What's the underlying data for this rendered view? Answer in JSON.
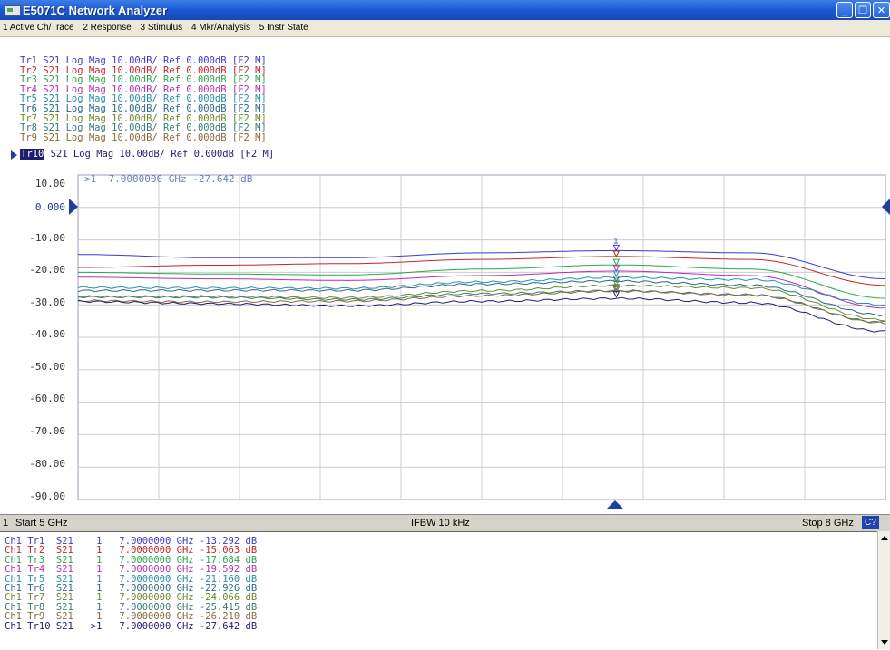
{
  "window": {
    "title": "E5071C Network Analyzer"
  },
  "menu": {
    "items": [
      "1 Active Ch/Trace",
      "2 Response",
      "3 Stimulus",
      "4 Mkr/Analysis",
      "5 Instr State"
    ]
  },
  "traces": [
    {
      "name": "Tr1",
      "text": " S21 Log Mag 10.00dB/ Ref 0.000dB [F2 M]",
      "color": "#3a3ad0"
    },
    {
      "name": "Tr2",
      "text": " S21 Log Mag 10.00dB/ Ref 0.000dB [F2 M]",
      "color": "#c0272d"
    },
    {
      "name": "Tr3",
      "text": " S21 Log Mag 10.00dB/ Ref 0.000dB [F2 M]",
      "color": "#2aa84a"
    },
    {
      "name": "Tr4",
      "text": " S21 Log Mag 10.00dB/ Ref 0.000dB [F2 M]",
      "color": "#b52fb5"
    },
    {
      "name": "Tr5",
      "text": " S21 Log Mag 10.00dB/ Ref 0.000dB [F2 M]",
      "color": "#2a8fa8"
    },
    {
      "name": "Tr6",
      "text": " S21 Log Mag 10.00dB/ Ref 0.000dB [F2 M]",
      "color": "#2a6a8a"
    },
    {
      "name": "Tr7",
      "text": " S21 Log Mag 10.00dB/ Ref 0.000dB [F2 M]",
      "color": "#6a8a2a"
    },
    {
      "name": "Tr8",
      "text": " S21 Log Mag 10.00dB/ Ref 0.000dB [F2 M]",
      "color": "#3a7a7a"
    },
    {
      "name": "Tr9",
      "text": " S21 Log Mag 10.00dB/ Ref 0.000dB [F2 M]",
      "color": "#8a6a3a"
    },
    {
      "name": "Tr10",
      "text": " S21 Log Mag 10.00dB/ Ref 0.000dB [F2 M]",
      "color": "#1e1e6e"
    }
  ],
  "chart": {
    "readout": ">1  7.0000000 GHz -27.642 dB",
    "y_ticks": [
      "10.00",
      "0.000",
      "-10.00",
      "-20.00",
      "-30.00",
      "-40.00",
      "-50.00",
      "-60.00",
      "-70.00",
      "-80.00",
      "-90.00"
    ],
    "marker_label": "1",
    "marker_ghz": 7.0,
    "start_ghz": 5,
    "stop_ghz": 8
  },
  "chart_data": {
    "type": "line",
    "ylim": [
      -90,
      10
    ],
    "xlim": [
      5,
      8
    ],
    "series": [
      {
        "name": "Tr1",
        "x": [
          5,
          5.5,
          6,
          6.5,
          7,
          7.5,
          8
        ],
        "y": [
          -14.5,
          -15.5,
          -15.5,
          -14,
          -13.3,
          -14,
          -22
        ]
      },
      {
        "name": "Tr2",
        "x": [
          5,
          5.5,
          6,
          6.5,
          7,
          7.5,
          8
        ],
        "y": [
          -18.5,
          -17.8,
          -17.3,
          -16,
          -15.1,
          -16,
          -24
        ]
      },
      {
        "name": "Tr3",
        "x": [
          5,
          5.5,
          6,
          6.5,
          7,
          7.5,
          8
        ],
        "y": [
          -20,
          -20.5,
          -20.8,
          -19,
          -17.7,
          -19,
          -28
        ]
      },
      {
        "name": "Tr4",
        "x": [
          5,
          5.5,
          6,
          6.5,
          7,
          7.5,
          8
        ],
        "y": [
          -21.5,
          -22,
          -22.5,
          -21,
          -19.6,
          -21,
          -31
        ]
      },
      {
        "name": "Tr5",
        "x": [
          5,
          5.5,
          6,
          6.5,
          7,
          7.5,
          8
        ],
        "y": [
          -24.5,
          -24.5,
          -24.5,
          -22.5,
          -21.2,
          -22,
          -30
        ]
      },
      {
        "name": "Tr6",
        "x": [
          5,
          5.5,
          6,
          6.5,
          7,
          7.5,
          8
        ],
        "y": [
          -26,
          -26,
          -26,
          -24,
          -22.9,
          -24,
          -33
        ]
      },
      {
        "name": "Tr7",
        "x": [
          5,
          5.5,
          6,
          6.5,
          7,
          7.5,
          8
        ],
        "y": [
          -27,
          -27,
          -27.5,
          -25.5,
          -24.1,
          -25,
          -35
        ]
      },
      {
        "name": "Tr8",
        "x": [
          5,
          5.5,
          6,
          6.5,
          7,
          7.5,
          8
        ],
        "y": [
          -28,
          -28,
          -28.5,
          -26.5,
          -25.4,
          -26.5,
          -35
        ]
      },
      {
        "name": "Tr9",
        "x": [
          5,
          5.5,
          6,
          6.5,
          7,
          7.5,
          8
        ],
        "y": [
          -28.5,
          -29,
          -29,
          -27.5,
          -26.2,
          -27.5,
          -36
        ]
      },
      {
        "name": "Tr10",
        "x": [
          5,
          5.5,
          6,
          6.5,
          7,
          7.5,
          8
        ],
        "y": [
          -29,
          -29.5,
          -30,
          -28.5,
          -27.6,
          -29,
          -38
        ]
      }
    ]
  },
  "status": {
    "channel": "1",
    "start": "Start 5 GHz",
    "ifbw": "IFBW 10 kHz",
    "stop": "Stop 8 GHz",
    "cal_badge": "C?"
  },
  "marker_table": [
    {
      "ch": "Ch1",
      "tr": "Tr1",
      "param": "S21",
      "mk": "1",
      "freq": "7.0000000 GHz",
      "val": "-13.292 dB",
      "color": "#3a3ad0"
    },
    {
      "ch": "Ch1",
      "tr": "Tr2",
      "param": "S21",
      "mk": "1",
      "freq": "7.0000000 GHz",
      "val": "-15.063 dB",
      "color": "#c0272d"
    },
    {
      "ch": "Ch1",
      "tr": "Tr3",
      "param": "S21",
      "mk": "1",
      "freq": "7.0000000 GHz",
      "val": "-17.684 dB",
      "color": "#2aa84a"
    },
    {
      "ch": "Ch1",
      "tr": "Tr4",
      "param": "S21",
      "mk": "1",
      "freq": "7.0000000 GHz",
      "val": "-19.592 dB",
      "color": "#b52fb5"
    },
    {
      "ch": "Ch1",
      "tr": "Tr5",
      "param": "S21",
      "mk": "1",
      "freq": "7.0000000 GHz",
      "val": "-21.160 dB",
      "color": "#2a8fa8"
    },
    {
      "ch": "Ch1",
      "tr": "Tr6",
      "param": "S21",
      "mk": "1",
      "freq": "7.0000000 GHz",
      "val": "-22.926 dB",
      "color": "#2a6a8a"
    },
    {
      "ch": "Ch1",
      "tr": "Tr7",
      "param": "S21",
      "mk": "1",
      "freq": "7.0000000 GHz",
      "val": "-24.066 dB",
      "color": "#6a8a2a"
    },
    {
      "ch": "Ch1",
      "tr": "Tr8",
      "param": "S21",
      "mk": "1",
      "freq": "7.0000000 GHz",
      "val": "-25.415 dB",
      "color": "#3a7a7a"
    },
    {
      "ch": "Ch1",
      "tr": "Tr9",
      "param": "S21",
      "mk": "1",
      "freq": "7.0000000 GHz",
      "val": "-26.210 dB",
      "color": "#8a6a3a"
    },
    {
      "ch": "Ch1",
      "tr": "Tr10",
      "param": "S21",
      "mk": ">1",
      "freq": "7.0000000 GHz",
      "val": "-27.642 dB",
      "color": "#1e1e6e"
    }
  ]
}
